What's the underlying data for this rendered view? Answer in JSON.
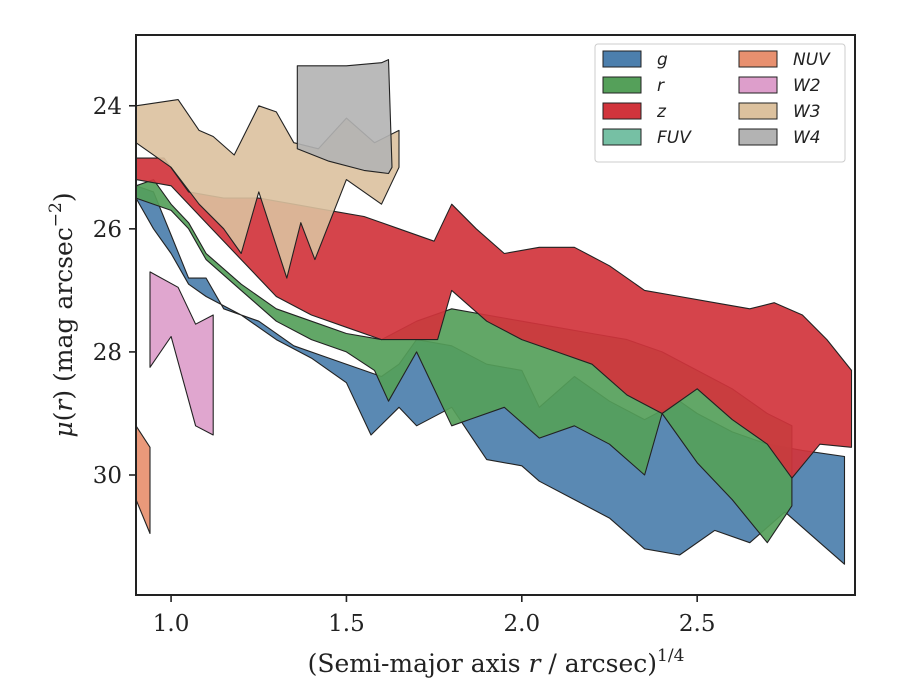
{
  "chart_data": {
    "type": "area",
    "xlabel": "(Semi-major axis r / arcsec)^1/4",
    "xlabel_parts": {
      "pre": "(Semi-major axis ",
      "var": "r",
      "post": " / arcsec)",
      "sup": "1/4"
    },
    "ylabel": "μ(r) (mag arcsec^−2)",
    "ylabel_parts": {
      "mu": "μ",
      "open": "(",
      "var": "r",
      "close": ") (mag arcsec",
      "sup": "−2",
      "end": ")"
    },
    "xlim": [
      0.9,
      2.95
    ],
    "ylim": [
      31.95,
      22.85
    ],
    "y_inverted": true,
    "x_ticks": [
      1.0,
      1.5,
      2.0,
      2.5
    ],
    "x_tick_labels": [
      "1.0",
      "1.5",
      "2.0",
      "2.5"
    ],
    "y_ticks": [
      24,
      26,
      28,
      30
    ],
    "y_tick_labels": [
      "24",
      "26",
      "28",
      "30"
    ],
    "grid": false,
    "legend": {
      "placement": "top-right",
      "columns": 2
    },
    "series": [
      {
        "name": "g",
        "color": "#4c7fad",
        "upper": [
          [
            0.9,
            25.3
          ],
          [
            0.95,
            25.4
          ],
          [
            1.0,
            26.1
          ],
          [
            1.05,
            26.8
          ],
          [
            1.1,
            26.8
          ],
          [
            1.15,
            27.3
          ],
          [
            1.25,
            27.5
          ],
          [
            1.35,
            27.9
          ],
          [
            1.45,
            28.1
          ],
          [
            1.55,
            28.3
          ],
          [
            1.6,
            28.4
          ],
          [
            1.65,
            28.2
          ],
          [
            1.7,
            27.8
          ],
          [
            1.8,
            27.9
          ],
          [
            1.9,
            28.2
          ],
          [
            2.0,
            28.3
          ],
          [
            2.05,
            28.9
          ],
          [
            2.15,
            28.4
          ],
          [
            2.25,
            28.8
          ],
          [
            2.35,
            29.1
          ],
          [
            2.45,
            28.8
          ],
          [
            2.5,
            29.0
          ],
          [
            2.6,
            29.3
          ],
          [
            2.7,
            29.5
          ],
          [
            2.8,
            29.6
          ],
          [
            2.92,
            29.7
          ]
        ],
        "lower": [
          [
            0.9,
            25.5
          ],
          [
            0.95,
            26.0
          ],
          [
            1.0,
            26.4
          ],
          [
            1.05,
            26.9
          ],
          [
            1.1,
            27.1
          ],
          [
            1.2,
            27.4
          ],
          [
            1.3,
            27.8
          ],
          [
            1.4,
            28.1
          ],
          [
            1.5,
            28.5
          ],
          [
            1.57,
            29.35
          ],
          [
            1.65,
            28.9
          ],
          [
            1.7,
            29.2
          ],
          [
            1.8,
            28.9
          ],
          [
            1.9,
            29.75
          ],
          [
            2.0,
            29.85
          ],
          [
            2.05,
            30.1
          ],
          [
            2.15,
            30.4
          ],
          [
            2.25,
            30.7
          ],
          [
            2.35,
            31.2
          ],
          [
            2.45,
            31.3
          ],
          [
            2.55,
            30.9
          ],
          [
            2.65,
            31.1
          ],
          [
            2.75,
            30.6
          ],
          [
            2.85,
            31.1
          ],
          [
            2.92,
            31.45
          ]
        ]
      },
      {
        "name": "r",
        "color": "#55a05a",
        "upper": [
          [
            0.9,
            25.3
          ],
          [
            0.95,
            25.2
          ],
          [
            1.0,
            25.6
          ],
          [
            1.05,
            25.9
          ],
          [
            1.1,
            26.4
          ],
          [
            1.2,
            26.9
          ],
          [
            1.3,
            27.3
          ],
          [
            1.4,
            27.5
          ],
          [
            1.5,
            27.7
          ],
          [
            1.6,
            27.8
          ],
          [
            1.7,
            27.5
          ],
          [
            1.8,
            27.3
          ],
          [
            1.9,
            27.4
          ],
          [
            2.0,
            27.5
          ],
          [
            2.1,
            27.6
          ],
          [
            2.2,
            27.7
          ],
          [
            2.3,
            27.8
          ],
          [
            2.4,
            28.0
          ],
          [
            2.5,
            28.3
          ],
          [
            2.6,
            28.6
          ],
          [
            2.7,
            29.0
          ],
          [
            2.77,
            29.2
          ]
        ],
        "lower": [
          [
            0.9,
            25.5
          ],
          [
            1.0,
            25.7
          ],
          [
            1.05,
            26.0
          ],
          [
            1.1,
            26.5
          ],
          [
            1.2,
            27.0
          ],
          [
            1.3,
            27.5
          ],
          [
            1.4,
            27.8
          ],
          [
            1.5,
            28.0
          ],
          [
            1.58,
            28.3
          ],
          [
            1.62,
            28.8
          ],
          [
            1.7,
            28.0
          ],
          [
            1.8,
            29.2
          ],
          [
            1.85,
            29.1
          ],
          [
            1.95,
            28.9
          ],
          [
            2.05,
            29.4
          ],
          [
            2.15,
            29.2
          ],
          [
            2.25,
            29.5
          ],
          [
            2.35,
            30.0
          ],
          [
            2.4,
            29.0
          ],
          [
            2.5,
            29.8
          ],
          [
            2.6,
            30.4
          ],
          [
            2.7,
            31.1
          ],
          [
            2.77,
            30.5
          ]
        ]
      },
      {
        "name": "z",
        "color": "#d1343c",
        "upper": [
          [
            0.9,
            24.85
          ],
          [
            0.98,
            24.85
          ],
          [
            1.05,
            25.4
          ],
          [
            1.15,
            25.5
          ],
          [
            1.25,
            25.5
          ],
          [
            1.35,
            25.6
          ],
          [
            1.45,
            25.7
          ],
          [
            1.55,
            25.8
          ],
          [
            1.65,
            26.0
          ],
          [
            1.75,
            26.2
          ],
          [
            1.8,
            25.6
          ],
          [
            1.87,
            26.0
          ],
          [
            1.95,
            26.4
          ],
          [
            2.05,
            26.3
          ],
          [
            2.15,
            26.3
          ],
          [
            2.25,
            26.6
          ],
          [
            2.35,
            27.0
          ],
          [
            2.45,
            27.1
          ],
          [
            2.55,
            27.2
          ],
          [
            2.65,
            27.3
          ],
          [
            2.72,
            27.2
          ],
          [
            2.8,
            27.4
          ],
          [
            2.87,
            27.8
          ],
          [
            2.94,
            28.3
          ]
        ],
        "lower": [
          [
            0.9,
            25.2
          ],
          [
            1.0,
            25.3
          ],
          [
            1.1,
            25.9
          ],
          [
            1.2,
            26.5
          ],
          [
            1.3,
            27.1
          ],
          [
            1.4,
            27.4
          ],
          [
            1.5,
            27.6
          ],
          [
            1.6,
            27.8
          ],
          [
            1.7,
            27.8
          ],
          [
            1.76,
            27.8
          ],
          [
            1.8,
            27.0
          ],
          [
            1.9,
            27.5
          ],
          [
            2.0,
            27.8
          ],
          [
            2.1,
            28.0
          ],
          [
            2.2,
            28.2
          ],
          [
            2.3,
            28.7
          ],
          [
            2.4,
            29.0
          ],
          [
            2.5,
            28.6
          ],
          [
            2.6,
            29.1
          ],
          [
            2.7,
            29.5
          ],
          [
            2.77,
            30.05
          ],
          [
            2.85,
            29.5
          ],
          [
            2.94,
            29.55
          ]
        ]
      },
      {
        "name": "FUV",
        "color": "#76c0a4",
        "upper": [],
        "lower": []
      },
      {
        "name": "NUV",
        "color": "#e8906f",
        "upper": [
          [
            0.9,
            29.2
          ],
          [
            0.94,
            29.55
          ]
        ],
        "lower": [
          [
            0.9,
            30.4
          ],
          [
            0.94,
            30.95
          ]
        ]
      },
      {
        "name": "W2",
        "color": "#dd9ecb",
        "upper": [
          [
            0.94,
            26.7
          ],
          [
            1.02,
            26.95
          ],
          [
            1.07,
            27.55
          ],
          [
            1.12,
            27.4
          ]
        ],
        "lower": [
          [
            0.94,
            28.25
          ],
          [
            1.0,
            27.75
          ],
          [
            1.07,
            29.2
          ],
          [
            1.12,
            29.35
          ]
        ]
      },
      {
        "name": "W3",
        "color": "#dcc19e",
        "upper": [
          [
            0.9,
            24.0
          ],
          [
            1.02,
            23.9
          ],
          [
            1.08,
            24.4
          ],
          [
            1.12,
            24.5
          ],
          [
            1.18,
            24.8
          ],
          [
            1.25,
            24.0
          ],
          [
            1.3,
            24.1
          ],
          [
            1.35,
            24.6
          ],
          [
            1.42,
            24.7
          ],
          [
            1.5,
            24.2
          ],
          [
            1.58,
            24.6
          ],
          [
            1.65,
            24.4
          ]
        ],
        "lower": [
          [
            0.9,
            24.6
          ],
          [
            1.0,
            25.0
          ],
          [
            1.08,
            25.6
          ],
          [
            1.15,
            26.0
          ],
          [
            1.2,
            26.4
          ],
          [
            1.25,
            25.4
          ],
          [
            1.33,
            26.8
          ],
          [
            1.37,
            25.9
          ],
          [
            1.41,
            26.5
          ],
          [
            1.5,
            25.2
          ],
          [
            1.6,
            25.6
          ],
          [
            1.65,
            25.0
          ]
        ]
      },
      {
        "name": "W4",
        "color": "#b3b3b3",
        "upper": [
          [
            1.36,
            23.35
          ],
          [
            1.5,
            23.35
          ],
          [
            1.6,
            23.3
          ],
          [
            1.62,
            23.25
          ]
        ],
        "lower": [
          [
            1.36,
            24.7
          ],
          [
            1.45,
            24.9
          ],
          [
            1.55,
            25.05
          ],
          [
            1.62,
            25.1
          ],
          [
            1.63,
            25.0
          ]
        ]
      }
    ]
  }
}
